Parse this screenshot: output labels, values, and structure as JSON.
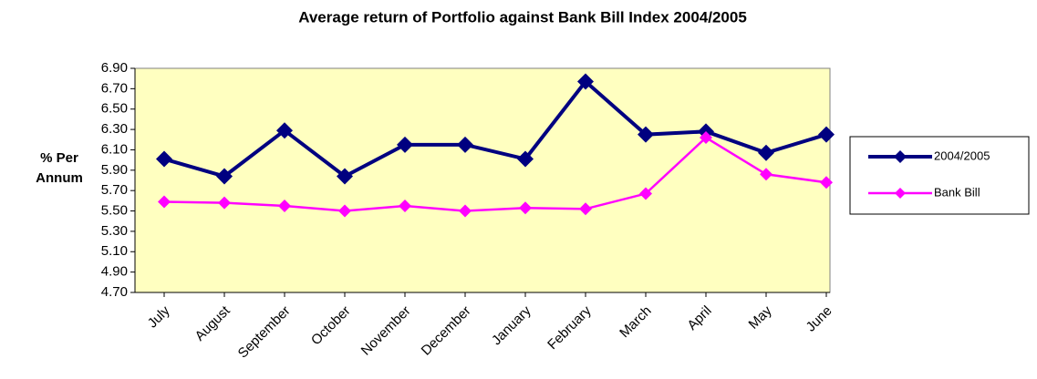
{
  "chart_data": {
    "type": "line",
    "title": "Average return of Portfolio against Bank Bill Index 2004/2005",
    "y_label": "% Per Annum",
    "categories": [
      "July",
      "August",
      "September",
      "October",
      "November",
      "December",
      "January",
      "February",
      "March",
      "April",
      "May",
      "June"
    ],
    "series": [
      {
        "name": "2004/2005",
        "color": "#000080",
        "values": [
          6.01,
          5.84,
          6.29,
          5.84,
          6.15,
          6.15,
          6.01,
          6.77,
          6.25,
          6.28,
          6.07,
          6.25
        ]
      },
      {
        "name": "Bank Bill",
        "color": "#ff00ff",
        "values": [
          5.59,
          5.58,
          5.55,
          5.5,
          5.55,
          5.5,
          5.53,
          5.52,
          5.67,
          6.22,
          5.86,
          5.78
        ]
      }
    ],
    "ylim": [
      4.7,
      6.9
    ],
    "yticks": [
      {
        "value": 4.7,
        "label": "4.70"
      },
      {
        "value": 4.9,
        "label": "4.90"
      },
      {
        "value": 5.1,
        "label": "5.10"
      },
      {
        "value": 5.3,
        "label": "5.30"
      },
      {
        "value": 5.5,
        "label": "5.50"
      },
      {
        "value": 5.7,
        "label": "5.70"
      },
      {
        "value": 5.9,
        "label": "5.90"
      },
      {
        "value": 6.1,
        "label": "6.10"
      },
      {
        "value": 6.3,
        "label": "6.30"
      },
      {
        "value": 6.5,
        "label": "6.50"
      },
      {
        "value": 6.7,
        "label": "6.70"
      },
      {
        "value": 6.9,
        "label": "6.90"
      }
    ],
    "legend": "right",
    "plot_background": "#ffffc0"
  }
}
